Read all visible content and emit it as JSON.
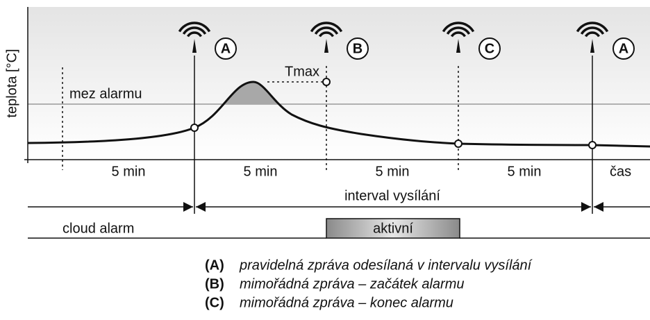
{
  "axis": {
    "y_label": "teplota [°C]",
    "x_label": "čas"
  },
  "threshold_label": "mez alarmu",
  "peak_label": "Tmax",
  "transmitters": [
    {
      "marker": "A"
    },
    {
      "marker": "B"
    },
    {
      "marker": "C"
    },
    {
      "marker": "A"
    }
  ],
  "intervals": [
    "5 min",
    "5 min",
    "5 min",
    "5 min"
  ],
  "interval_label": "interval vysílání",
  "alarm": {
    "label": "cloud alarm",
    "state": "aktivní"
  },
  "legend": [
    {
      "key": "(A)",
      "text": "pravidelná zpráva odesílaná v intervalu vysílání"
    },
    {
      "key": "(B)",
      "text": "mimořádná zpráva – začátek alarmu"
    },
    {
      "key": "(C)",
      "text": "mimořádná zpráva – konec alarmu"
    }
  ]
}
